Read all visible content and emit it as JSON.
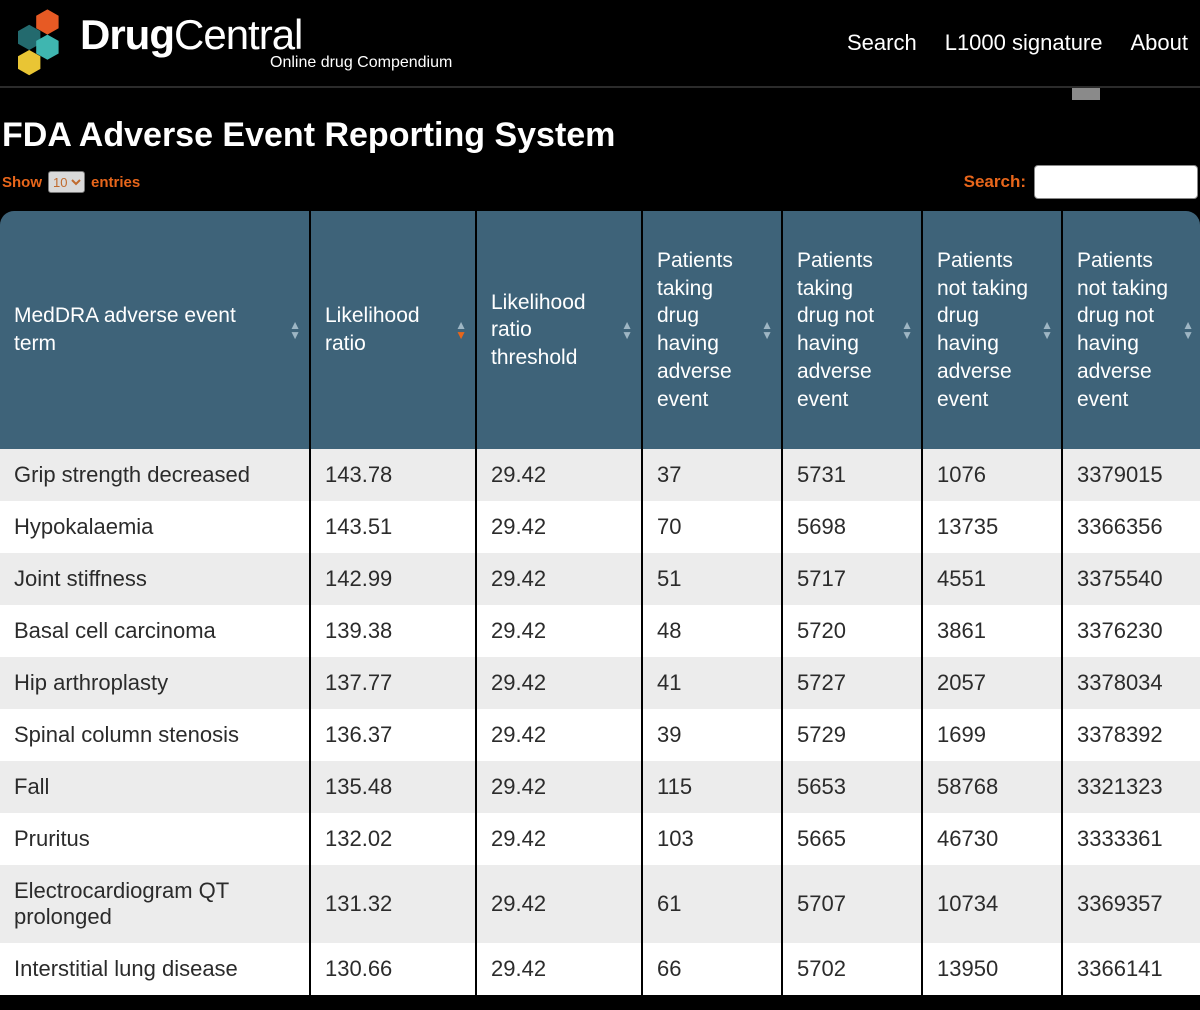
{
  "brand": {
    "title_strong": "Drug",
    "title_light": "Central",
    "subtitle": "Online drug Compendium"
  },
  "nav": {
    "search": "Search",
    "l1000": "L1000 signature",
    "about": "About"
  },
  "page": {
    "title": "FDA Adverse Event Reporting System"
  },
  "controls": {
    "show_label": "Show",
    "entries_label": "entries",
    "page_size": "10",
    "search_label": "Search:",
    "search_value": ""
  },
  "table": {
    "sorted_col": 1,
    "sorted_dir": "desc",
    "columns": [
      "MedDRA adverse event term",
      "Likelihood ratio",
      "Likelihood ratio threshold",
      "Patients taking drug having adverse event",
      "Patients taking drug not having adverse event",
      "Patients not taking drug having adverse event",
      "Patients not taking drug not having adverse event"
    ],
    "rows": [
      [
        "Grip strength decreased",
        "143.78",
        "29.42",
        "37",
        "5731",
        "1076",
        "3379015"
      ],
      [
        "Hypokalaemia",
        "143.51",
        "29.42",
        "70",
        "5698",
        "13735",
        "3366356"
      ],
      [
        "Joint stiffness",
        "142.99",
        "29.42",
        "51",
        "5717",
        "4551",
        "3375540"
      ],
      [
        "Basal cell carcinoma",
        "139.38",
        "29.42",
        "48",
        "5720",
        "3861",
        "3376230"
      ],
      [
        "Hip arthroplasty",
        "137.77",
        "29.42",
        "41",
        "5727",
        "2057",
        "3378034"
      ],
      [
        "Spinal column stenosis",
        "136.37",
        "29.42",
        "39",
        "5729",
        "1699",
        "3378392"
      ],
      [
        "Fall",
        "135.48",
        "29.42",
        "115",
        "5653",
        "58768",
        "3321323"
      ],
      [
        "Pruritus",
        "132.02",
        "29.42",
        "103",
        "5665",
        "46730",
        "3333361"
      ],
      [
        "Electrocardiogram QT prolonged",
        "131.32",
        "29.42",
        "61",
        "5707",
        "10734",
        "3369357"
      ],
      [
        "Interstitial lung disease",
        "130.66",
        "29.42",
        "66",
        "5702",
        "13950",
        "3366141"
      ]
    ]
  },
  "colors": {
    "accent": "#e8661b",
    "header_bg": "#3e6379",
    "row_odd": "#ececec",
    "row_even": "#ffffff",
    "page_bg": "#000000",
    "logo_hex": [
      "#e75a24",
      "#236a6e",
      "#3fb6b0",
      "#e9c534"
    ]
  }
}
